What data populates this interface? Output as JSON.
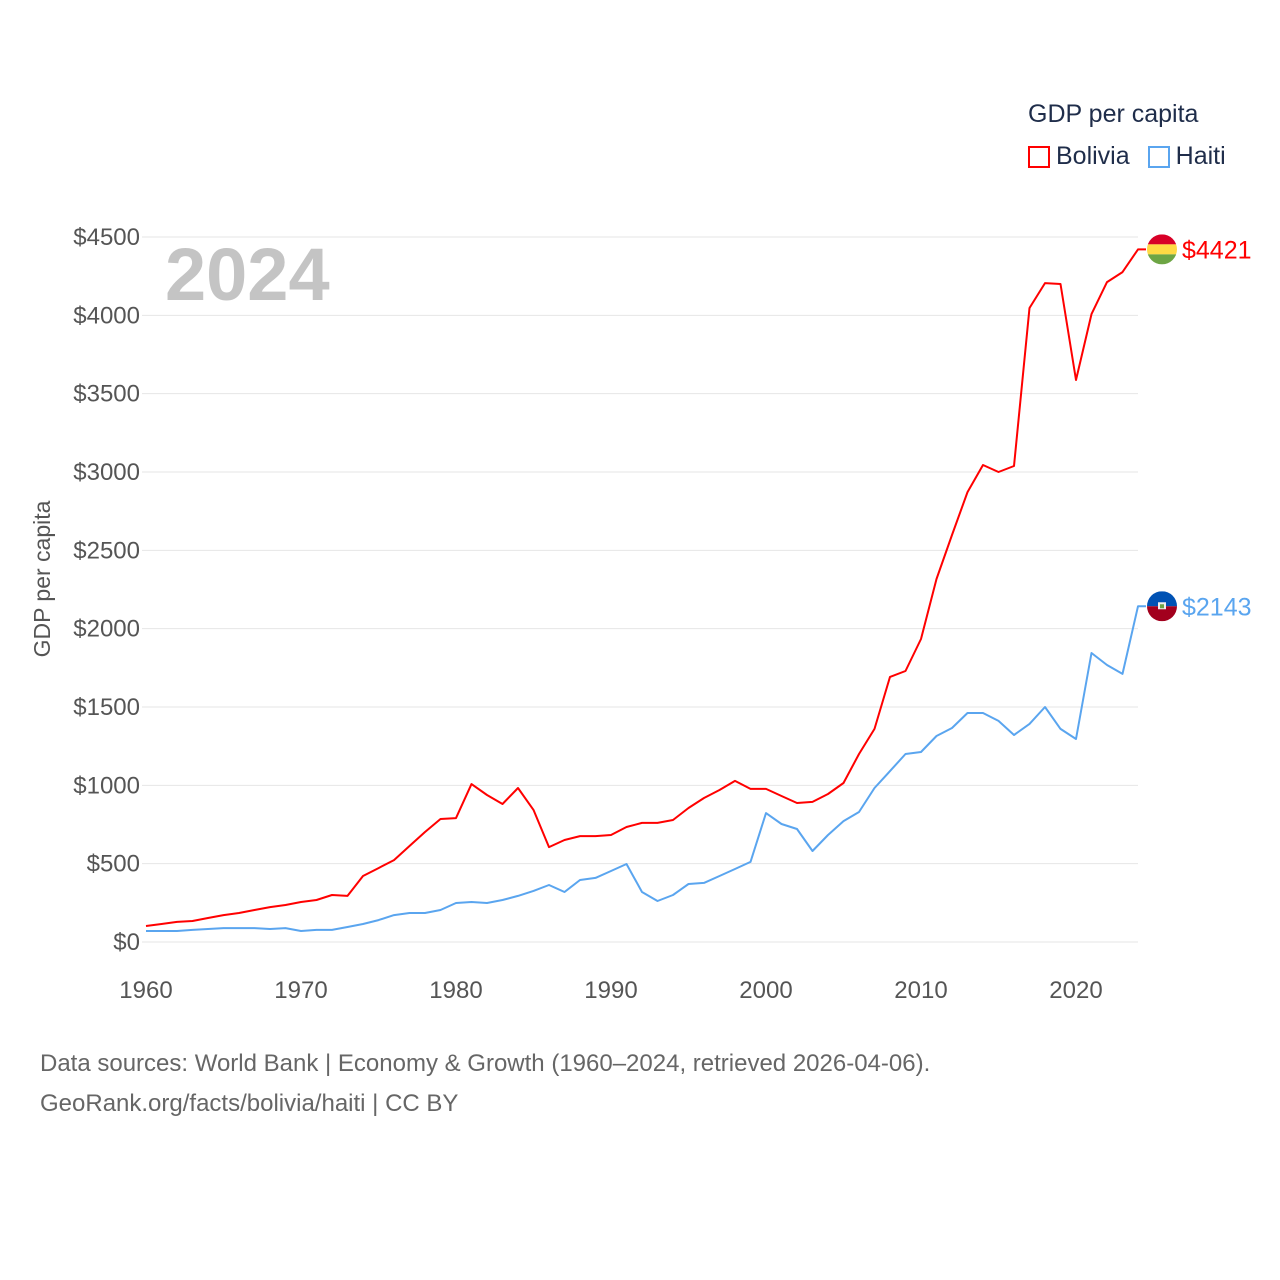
{
  "chart_data": {
    "type": "line",
    "title": "GDP per capita",
    "ylabel": "GDP per capita",
    "xlabel": "",
    "year_label": "2024",
    "xlim": [
      1960,
      2024
    ],
    "ylim": [
      0,
      4500
    ],
    "xticks": [
      1960,
      1970,
      1980,
      1990,
      2000,
      2010,
      2020
    ],
    "yticks": [
      0,
      500,
      1000,
      1500,
      2000,
      2500,
      3000,
      3500,
      4000,
      4500
    ],
    "ytick_labels": [
      "$0",
      "$500",
      "$1000",
      "$1500",
      "$2000",
      "$2500",
      "$3000",
      "$3500",
      "$4000",
      "$4500"
    ],
    "grid": true,
    "legend_position": "top-right",
    "x": [
      1960,
      1961,
      1962,
      1963,
      1964,
      1965,
      1966,
      1967,
      1968,
      1969,
      1970,
      1971,
      1972,
      1973,
      1974,
      1975,
      1976,
      1977,
      1978,
      1979,
      1980,
      1981,
      1982,
      1983,
      1984,
      1985,
      1986,
      1987,
      1988,
      1989,
      1990,
      1991,
      1992,
      1993,
      1994,
      1995,
      1996,
      1997,
      1998,
      1999,
      2000,
      2001,
      2002,
      2003,
      2004,
      2005,
      2006,
      2007,
      2008,
      2009,
      2010,
      2011,
      2012,
      2013,
      2014,
      2015,
      2016,
      2017,
      2018,
      2019,
      2020,
      2021,
      2022,
      2023,
      2024
    ],
    "series": [
      {
        "name": "Bolivia",
        "color": "#ff0000",
        "end_label": "$4421",
        "flag": "bolivia-flag",
        "values": [
          102,
          115,
          128,
          134,
          153,
          172,
          185,
          204,
          223,
          236,
          255,
          268,
          300,
          294,
          421,
          472,
          523,
          613,
          702,
          785,
          791,
          1008,
          938,
          881,
          983,
          843,
          606,
          651,
          676,
          676,
          683,
          734,
          760,
          760,
          779,
          855,
          919,
          970,
          1028,
          977,
          977,
          932,
          887,
          894,
          945,
          1015,
          1200,
          1360,
          1692,
          1730,
          1934,
          2317,
          2598,
          2872,
          3045,
          3000,
          3038,
          4047,
          4206,
          4200,
          3587,
          4008,
          4212,
          4276,
          4421
        ]
      },
      {
        "name": "Haiti",
        "color": "#5aa5ef",
        "end_label": "$2143",
        "flag": "haiti-flag",
        "values": [
          70,
          70,
          70,
          77,
          83,
          89,
          89,
          89,
          83,
          89,
          70,
          77,
          77,
          96,
          115,
          140,
          172,
          185,
          185,
          204,
          249,
          255,
          249,
          268,
          294,
          326,
          364,
          319,
          396,
          409,
          453,
          498,
          319,
          262,
          300,
          370,
          377,
          421,
          466,
          511,
          823,
          753,
          721,
          581,
          683,
          772,
          830,
          983,
          1091,
          1200,
          1213,
          1315,
          1366,
          1462,
          1462,
          1411,
          1321,
          1392,
          1500,
          1360,
          1296,
          1845,
          1768,
          1711,
          2143
        ]
      }
    ]
  },
  "footer": {
    "line1": "Data sources: World Bank | Economy & Growth (1960–2024, retrieved 2026-04-06).",
    "line2": "GeoRank.org/facts/bolivia/haiti | CC BY"
  }
}
